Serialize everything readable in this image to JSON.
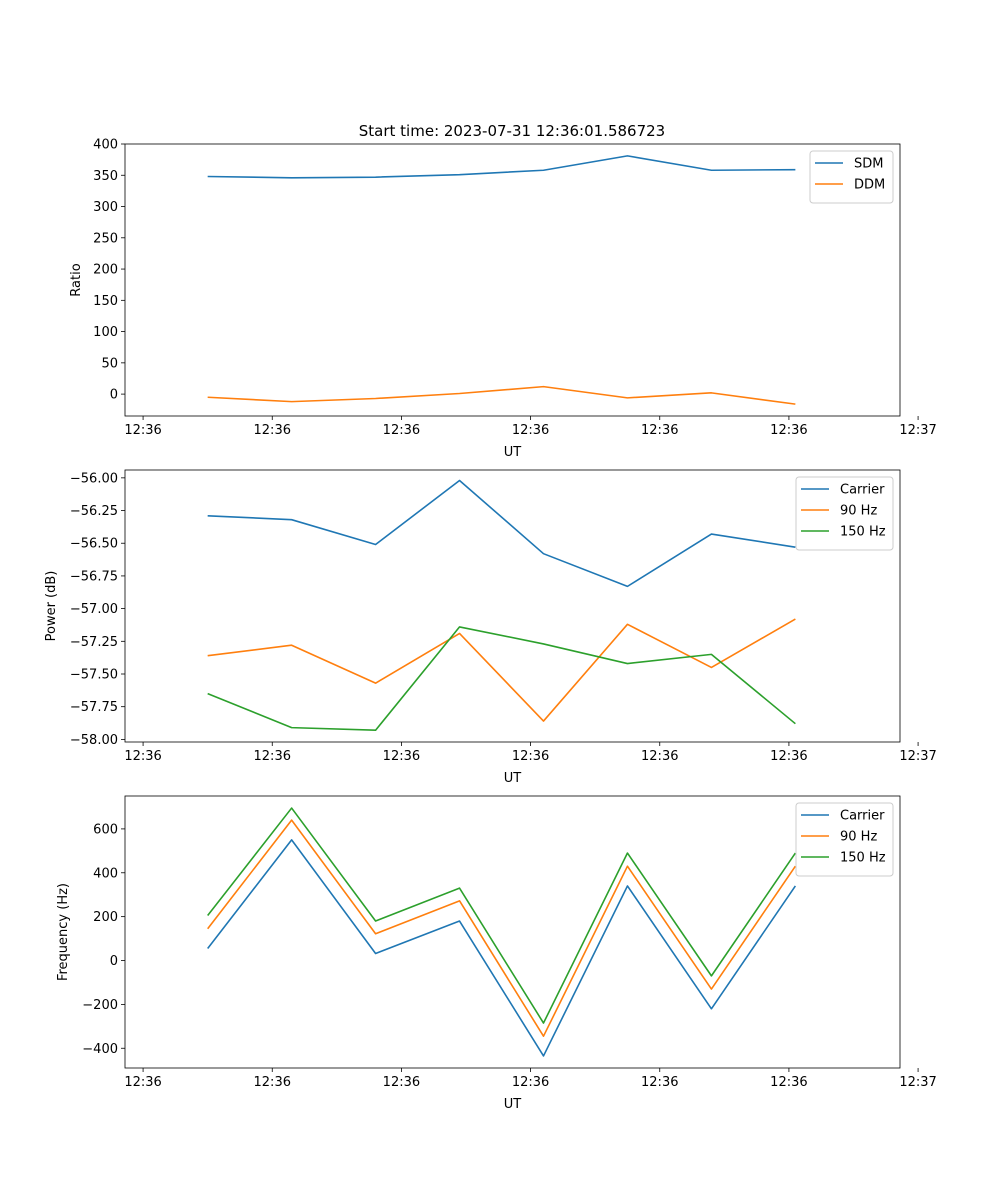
{
  "figure_title": "Start time: 2023-07-31 12:36:01.586723",
  "chart_data": [
    {
      "type": "line",
      "title": "Start time: 2023-07-31 12:36:01.586723",
      "xlabel": "UT",
      "ylabel": "Ratio",
      "x": [
        0.5,
        1.15,
        1.8,
        2.45,
        3.1,
        3.75,
        4.4,
        5.05
      ],
      "x_ticks": [
        0,
        1,
        2,
        3,
        4,
        5,
        6
      ],
      "x_tick_labels": [
        "12:36",
        "12:36",
        "12:36",
        "12:36",
        "12:36",
        "12:36",
        "12:37"
      ],
      "xlim": [
        -0.14,
        5.86
      ],
      "ylim": [
        -35,
        400
      ],
      "y_ticks": [
        0,
        50,
        100,
        150,
        200,
        250,
        300,
        350,
        400
      ],
      "y_tick_labels": [
        "0",
        "50",
        "100",
        "150",
        "200",
        "250",
        "300",
        "350",
        "400"
      ],
      "legend_position": "top-right",
      "series": [
        {
          "name": "SDM",
          "color": "#1f77b4",
          "values": [
            348,
            346,
            347,
            351,
            358,
            381,
            358,
            359
          ]
        },
        {
          "name": "DDM",
          "color": "#ff7f0e",
          "values": [
            -5,
            -12,
            -7,
            1,
            12,
            -6,
            2,
            -16
          ]
        }
      ]
    },
    {
      "type": "line",
      "title": "",
      "xlabel": "UT",
      "ylabel": "Power (dB)",
      "x": [
        0.5,
        1.15,
        1.8,
        2.45,
        3.1,
        3.75,
        4.4,
        5.05
      ],
      "x_ticks": [
        0,
        1,
        2,
        3,
        4,
        5,
        6
      ],
      "x_tick_labels": [
        "12:36",
        "12:36",
        "12:36",
        "12:36",
        "12:36",
        "12:36",
        "12:37"
      ],
      "xlim": [
        -0.14,
        5.86
      ],
      "ylim": [
        -58.02,
        -55.94
      ],
      "y_ticks": [
        -56.0,
        -56.25,
        -56.5,
        -56.75,
        -57.0,
        -57.25,
        -57.5,
        -57.75,
        -58.0
      ],
      "y_tick_labels": [
        "−56.00",
        "−56.25",
        "−56.50",
        "−56.75",
        "−57.00",
        "−57.25",
        "−57.50",
        "−57.75",
        "−58.00"
      ],
      "legend_position": "top-right",
      "series": [
        {
          "name": "Carrier",
          "color": "#1f77b4",
          "values": [
            -56.29,
            -56.32,
            -56.51,
            -56.02,
            -56.58,
            -56.83,
            -56.43,
            -56.53
          ]
        },
        {
          "name": "90 Hz",
          "color": "#ff7f0e",
          "values": [
            -57.36,
            -57.28,
            -57.57,
            -57.19,
            -57.86,
            -57.12,
            -57.45,
            -57.08
          ]
        },
        {
          "name": "150 Hz",
          "color": "#2ca02c",
          "values": [
            -57.65,
            -57.91,
            -57.93,
            -57.14,
            -57.27,
            -57.42,
            -57.35,
            -57.88
          ]
        }
      ]
    },
    {
      "type": "line",
      "title": "",
      "xlabel": "UT",
      "ylabel": "Frequency (Hz)",
      "x": [
        0.5,
        1.15,
        1.8,
        2.45,
        3.1,
        3.75,
        4.4,
        5.05
      ],
      "x_ticks": [
        0,
        1,
        2,
        3,
        4,
        5,
        6
      ],
      "x_tick_labels": [
        "12:36",
        "12:36",
        "12:36",
        "12:36",
        "12:36",
        "12:36",
        "12:37"
      ],
      "xlim": [
        -0.14,
        5.86
      ],
      "ylim": [
        -490,
        750
      ],
      "y_ticks": [
        -400,
        -200,
        0,
        200,
        400,
        600
      ],
      "y_tick_labels": [
        "−400",
        "−200",
        "0",
        "200",
        "400",
        "600"
      ],
      "legend_position": "top-right",
      "series": [
        {
          "name": "Carrier",
          "color": "#1f77b4",
          "values": [
            55,
            550,
            32,
            180,
            -435,
            340,
            -220,
            340
          ]
        },
        {
          "name": "90 Hz",
          "color": "#ff7f0e",
          "values": [
            145,
            640,
            122,
            272,
            -345,
            430,
            -130,
            430
          ]
        },
        {
          "name": "150 Hz",
          "color": "#2ca02c",
          "values": [
            205,
            695,
            180,
            330,
            -285,
            490,
            -70,
            490
          ]
        }
      ]
    }
  ]
}
